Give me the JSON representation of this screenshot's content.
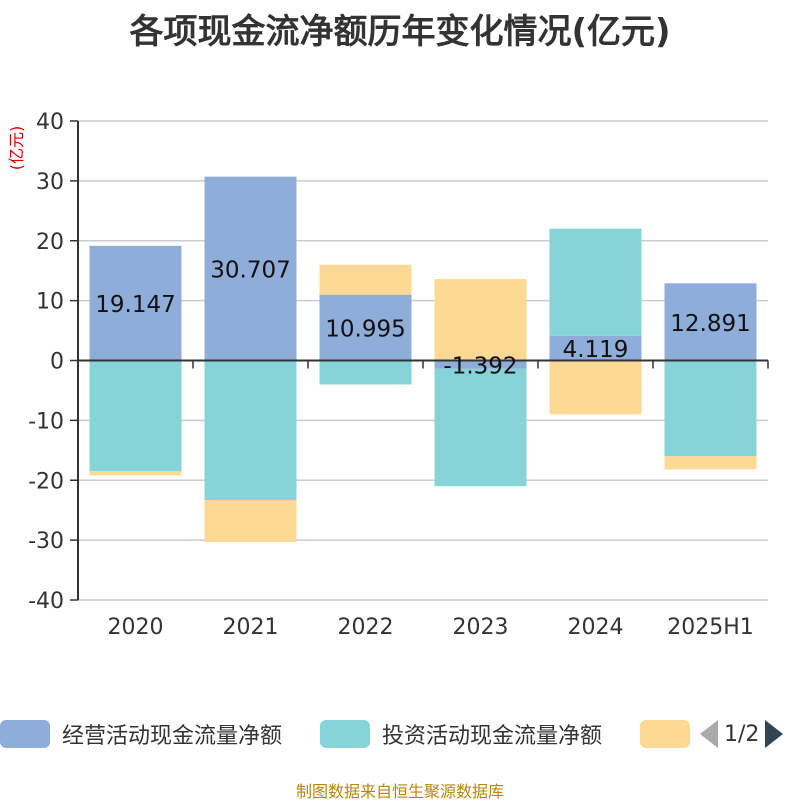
{
  "title": "各项现金流净额历年变化情况(亿元)",
  "source": "制图数据来自恒生聚源数据库",
  "pager": {
    "text": "1/2"
  },
  "colors": {
    "operating": "#8fadd9",
    "investing": "#86d4d8",
    "financing": "#fed895"
  },
  "chart_data": {
    "type": "bar",
    "stacked": true,
    "ylabel": "(亿元)",
    "ylim": [
      -40,
      40
    ],
    "yticks": [
      40,
      30,
      20,
      10,
      0,
      -10,
      -20,
      -30,
      -40
    ],
    "categories": [
      "2020",
      "2021",
      "2022",
      "2023",
      "2024",
      "2025H1"
    ],
    "legend_position": "bottom",
    "series": [
      {
        "name": "经营活动现金流量净额",
        "color": "#8fadd9",
        "values": [
          19.147,
          30.707,
          10.995,
          -1.392,
          4.119,
          12.891
        ],
        "labels": [
          "19.147",
          "30.707",
          "10.995",
          "-1.392",
          "4.119",
          "12.891"
        ]
      },
      {
        "name": "投资活动现金流量净额",
        "color": "#86d4d8",
        "values": [
          -18.5,
          -23.3,
          -4.0,
          -19.6,
          17.9,
          -16.0
        ]
      },
      {
        "name": "",
        "color": "#fed895",
        "values": [
          -0.7,
          -7.0,
          5.0,
          13.6,
          -9.0,
          -2.2
        ]
      }
    ]
  }
}
